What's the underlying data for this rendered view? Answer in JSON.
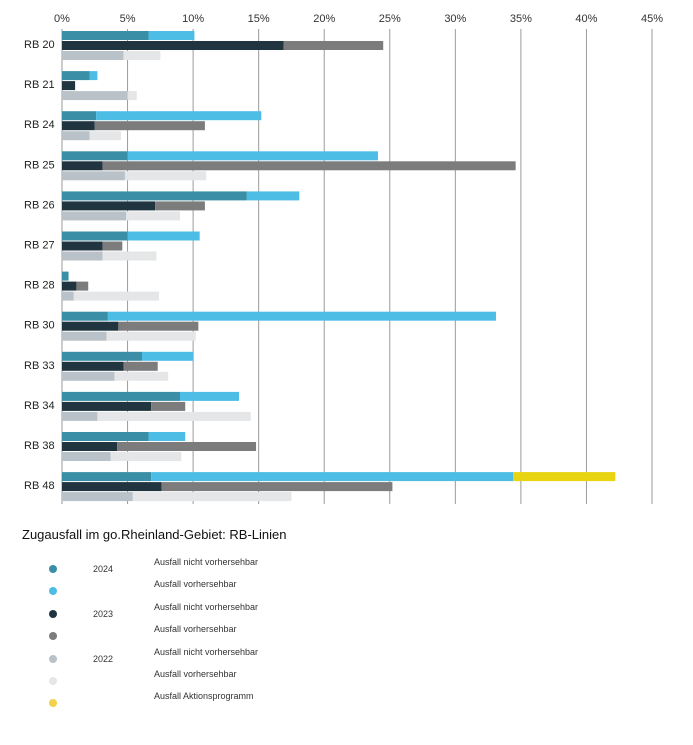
{
  "chart_data": {
    "type": "bar",
    "orientation": "horizontal",
    "stacked_within_year": true,
    "title": "Zugausfall im go.Rheinland-Gebiet: RB-Linien",
    "xlim": [
      0,
      45
    ],
    "x_ticks": [
      "0%",
      "5%",
      "10%",
      "15%",
      "20%",
      "25%",
      "30%",
      "35%",
      "40%",
      "45%"
    ],
    "grid": "vertical",
    "categories": [
      "RB 20",
      "RB 21",
      "RB 24",
      "RB 25",
      "RB 26",
      "RB 27",
      "RB 28",
      "RB 30",
      "RB 33",
      "RB 34",
      "RB 38",
      "RB 48"
    ],
    "years": [
      "2024",
      "2023",
      "2022"
    ],
    "series": [
      {
        "name": "Ausfall nicht vorhersehbar",
        "year": "2024",
        "color": "#3a8fa6",
        "values": [
          6.6,
          2.1,
          2.6,
          5.0,
          14.1,
          5.0,
          0.5,
          3.5,
          6.1,
          9.0,
          6.6,
          6.8
        ]
      },
      {
        "name": "Ausfall vorhersehbar",
        "year": "2024",
        "color": "#4dbde6",
        "values": [
          3.5,
          0.6,
          12.6,
          19.1,
          4.0,
          5.5,
          0.0,
          29.6,
          3.9,
          4.5,
          2.8,
          27.6
        ]
      },
      {
        "name": "Ausfall Aktionsprogramm",
        "year": "2024",
        "color": "#e8d410",
        "values": [
          0,
          0,
          0,
          0,
          0,
          0,
          0,
          0,
          0,
          0,
          0,
          7.8
        ]
      },
      {
        "name": "Ausfall nicht vorhersehbar",
        "year": "2023",
        "color": "#213540",
        "values": [
          16.9,
          1.0,
          2.5,
          3.1,
          7.1,
          3.1,
          1.1,
          4.3,
          4.7,
          6.8,
          4.2,
          7.6
        ]
      },
      {
        "name": "Ausfall vorhersehbar",
        "year": "2023",
        "color": "#7c7c7c",
        "values": [
          7.6,
          0.0,
          8.4,
          31.5,
          3.8,
          1.5,
          0.9,
          6.1,
          2.6,
          2.6,
          10.6,
          17.6
        ]
      },
      {
        "name": "Ausfall nicht vorhersehbar",
        "year": "2022",
        "color": "#b9c2c8",
        "values": [
          4.7,
          5.0,
          2.1,
          4.8,
          4.9,
          3.1,
          0.9,
          3.4,
          4.0,
          2.7,
          3.7,
          5.4
        ]
      },
      {
        "name": "Ausfall vorhersehbar",
        "year": "2022",
        "color": "#e4e6e7",
        "values": [
          2.8,
          0.7,
          2.4,
          6.2,
          4.1,
          4.1,
          6.5,
          6.8,
          4.1,
          11.7,
          5.4,
          12.1
        ]
      }
    ]
  },
  "legend": [
    {
      "year": "2024",
      "label": "Ausfall nicht vorhersehbar",
      "color": "#3a8fa6"
    },
    {
      "year": "",
      "label": "Ausfall vorhersehbar",
      "color": "#4dbde6"
    },
    {
      "year": "2023",
      "label": "Ausfall nicht vorhersehbar",
      "color": "#213540"
    },
    {
      "year": "",
      "label": "Ausfall vorhersehbar",
      "color": "#7c7c7c"
    },
    {
      "year": "2022",
      "label": "Ausfall nicht vorhersehbar",
      "color": "#b9c2c8"
    },
    {
      "year": "",
      "label": "Ausfall vorhersehbar",
      "color": "#e4e6e7"
    },
    {
      "year": "",
      "label": "Ausfall Aktionsprogramm",
      "color": "#f2d24a"
    }
  ]
}
